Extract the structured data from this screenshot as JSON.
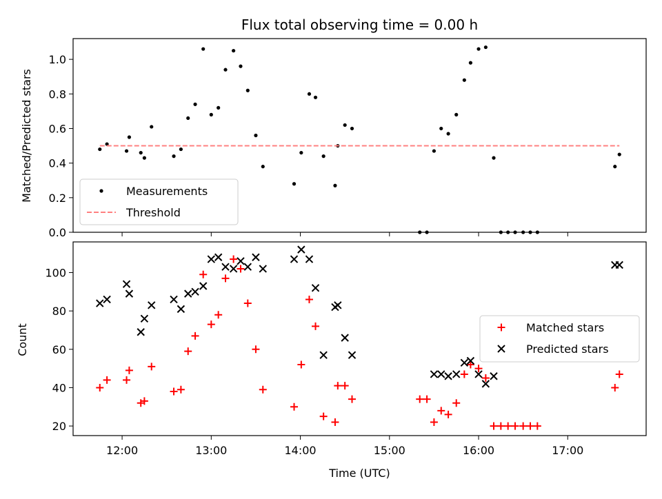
{
  "chart_data": [
    {
      "type": "scatter",
      "title": "Flux total observing time = 0.00 h",
      "ylabel": "Matched/Predicted stars",
      "xlabel": "",
      "xlim": [
        11.45,
        17.88
      ],
      "ylim": [
        0.0,
        1.12
      ],
      "x_ticks": [
        12,
        13,
        14,
        15,
        16,
        17
      ],
      "x_tick_labels": [
        "12:00",
        "13:00",
        "14:00",
        "15:00",
        "16:00",
        "17:00"
      ],
      "y_ticks": [
        0.0,
        0.2,
        0.4,
        0.6,
        0.8,
        1.0
      ],
      "y_tick_labels": [
        "0.0",
        "0.2",
        "0.4",
        "0.6",
        "0.8",
        "1.0"
      ],
      "legend": {
        "placement": "lower-left",
        "entries": [
          "Measurements",
          "Threshold"
        ]
      },
      "grid": false,
      "series": [
        {
          "name": "Measurements",
          "marker": "dot",
          "color": "#000000",
          "points": [
            [
              11.75,
              0.48
            ],
            [
              11.83,
              0.51
            ],
            [
              12.05,
              0.47
            ],
            [
              12.08,
              0.55
            ],
            [
              12.21,
              0.46
            ],
            [
              12.25,
              0.43
            ],
            [
              12.33,
              0.61
            ],
            [
              12.58,
              0.44
            ],
            [
              12.66,
              0.48
            ],
            [
              12.74,
              0.66
            ],
            [
              12.82,
              0.74
            ],
            [
              12.91,
              1.06
            ],
            [
              13.0,
              0.68
            ],
            [
              13.08,
              0.72
            ],
            [
              13.16,
              0.94
            ],
            [
              13.25,
              1.05
            ],
            [
              13.33,
              0.96
            ],
            [
              13.41,
              0.82
            ],
            [
              13.5,
              0.56
            ],
            [
              13.58,
              0.38
            ],
            [
              13.93,
              0.28
            ],
            [
              14.01,
              0.46
            ],
            [
              14.1,
              0.8
            ],
            [
              14.17,
              0.78
            ],
            [
              14.26,
              0.44
            ],
            [
              14.39,
              0.27
            ],
            [
              14.42,
              0.5
            ],
            [
              14.5,
              0.62
            ],
            [
              14.58,
              0.6
            ],
            [
              15.34,
              0.0
            ],
            [
              15.42,
              0.0
            ],
            [
              15.5,
              0.47
            ],
            [
              15.58,
              0.6
            ],
            [
              15.66,
              0.57
            ],
            [
              15.75,
              0.68
            ],
            [
              15.84,
              0.88
            ],
            [
              15.91,
              0.98
            ],
            [
              16.0,
              1.06
            ],
            [
              16.08,
              1.07
            ],
            [
              16.17,
              0.43
            ],
            [
              16.25,
              0.0
            ],
            [
              16.33,
              0.0
            ],
            [
              16.41,
              0.0
            ],
            [
              16.5,
              0.0
            ],
            [
              16.58,
              0.0
            ],
            [
              16.66,
              0.0
            ],
            [
              17.53,
              0.38
            ],
            [
              17.58,
              0.45
            ]
          ]
        },
        {
          "name": "Threshold",
          "marker": "dashed-line",
          "color": "#ff8080",
          "points": [
            [
              11.75,
              0.5
            ],
            [
              17.58,
              0.5
            ]
          ]
        }
      ]
    },
    {
      "type": "scatter",
      "title": "",
      "ylabel": "Count",
      "xlabel": "Time (UTC)",
      "xlim": [
        11.45,
        17.88
      ],
      "ylim": [
        15,
        116
      ],
      "x_ticks": [
        12,
        13,
        14,
        15,
        16,
        17
      ],
      "x_tick_labels": [
        "12:00",
        "13:00",
        "14:00",
        "15:00",
        "16:00",
        "17:00"
      ],
      "y_ticks": [
        20,
        40,
        60,
        80,
        100
      ],
      "y_tick_labels": [
        "20",
        "40",
        "60",
        "80",
        "100"
      ],
      "legend": {
        "placement": "center-right",
        "entries": [
          "Matched stars",
          "Predicted stars"
        ]
      },
      "grid": false,
      "series": [
        {
          "name": "Matched stars",
          "marker": "plus",
          "color": "#ff0000",
          "points": [
            [
              11.75,
              40
            ],
            [
              11.83,
              44
            ],
            [
              12.05,
              44
            ],
            [
              12.08,
              49
            ],
            [
              12.21,
              32
            ],
            [
              12.25,
              33
            ],
            [
              12.33,
              51
            ],
            [
              12.58,
              38
            ],
            [
              12.66,
              39
            ],
            [
              12.74,
              59
            ],
            [
              12.82,
              67
            ],
            [
              12.91,
              99
            ],
            [
              13.0,
              73
            ],
            [
              13.08,
              78
            ],
            [
              13.16,
              97
            ],
            [
              13.25,
              107
            ],
            [
              13.33,
              102
            ],
            [
              13.41,
              84
            ],
            [
              13.5,
              60
            ],
            [
              13.58,
              39
            ],
            [
              13.93,
              30
            ],
            [
              14.01,
              52
            ],
            [
              14.1,
              86
            ],
            [
              14.17,
              72
            ],
            [
              14.26,
              25
            ],
            [
              14.39,
              22
            ],
            [
              14.42,
              41
            ],
            [
              14.5,
              41
            ],
            [
              14.58,
              34
            ],
            [
              15.34,
              34
            ],
            [
              15.42,
              34
            ],
            [
              15.5,
              22
            ],
            [
              15.58,
              28
            ],
            [
              15.66,
              26
            ],
            [
              15.75,
              32
            ],
            [
              15.84,
              47
            ],
            [
              15.91,
              52
            ],
            [
              16.0,
              50
            ],
            [
              16.08,
              45
            ],
            [
              16.17,
              20
            ],
            [
              16.25,
              20
            ],
            [
              16.33,
              20
            ],
            [
              16.41,
              20
            ],
            [
              16.5,
              20
            ],
            [
              16.58,
              20
            ],
            [
              16.66,
              20
            ],
            [
              17.53,
              40
            ],
            [
              17.58,
              47
            ]
          ]
        },
        {
          "name": "Predicted stars",
          "marker": "x",
          "color": "#000000",
          "points": [
            [
              11.75,
              84
            ],
            [
              11.83,
              86
            ],
            [
              12.05,
              94
            ],
            [
              12.08,
              89
            ],
            [
              12.21,
              69
            ],
            [
              12.25,
              76
            ],
            [
              12.33,
              83
            ],
            [
              12.58,
              86
            ],
            [
              12.66,
              81
            ],
            [
              12.74,
              89
            ],
            [
              12.82,
              90
            ],
            [
              12.91,
              93
            ],
            [
              13.0,
              107
            ],
            [
              13.08,
              108
            ],
            [
              13.16,
              103
            ],
            [
              13.25,
              102
            ],
            [
              13.33,
              106
            ],
            [
              13.41,
              103
            ],
            [
              13.5,
              108
            ],
            [
              13.58,
              102
            ],
            [
              13.93,
              107
            ],
            [
              14.01,
              112
            ],
            [
              14.1,
              107
            ],
            [
              14.17,
              92
            ],
            [
              14.26,
              57
            ],
            [
              14.39,
              82
            ],
            [
              14.42,
              83
            ],
            [
              14.5,
              66
            ],
            [
              14.58,
              57
            ],
            [
              15.5,
              47
            ],
            [
              15.58,
              47
            ],
            [
              15.66,
              46
            ],
            [
              15.75,
              47
            ],
            [
              15.84,
              53
            ],
            [
              15.91,
              54
            ],
            [
              16.0,
              47
            ],
            [
              16.08,
              42
            ],
            [
              16.17,
              46
            ],
            [
              17.53,
              104
            ],
            [
              17.58,
              104
            ]
          ]
        }
      ]
    }
  ]
}
